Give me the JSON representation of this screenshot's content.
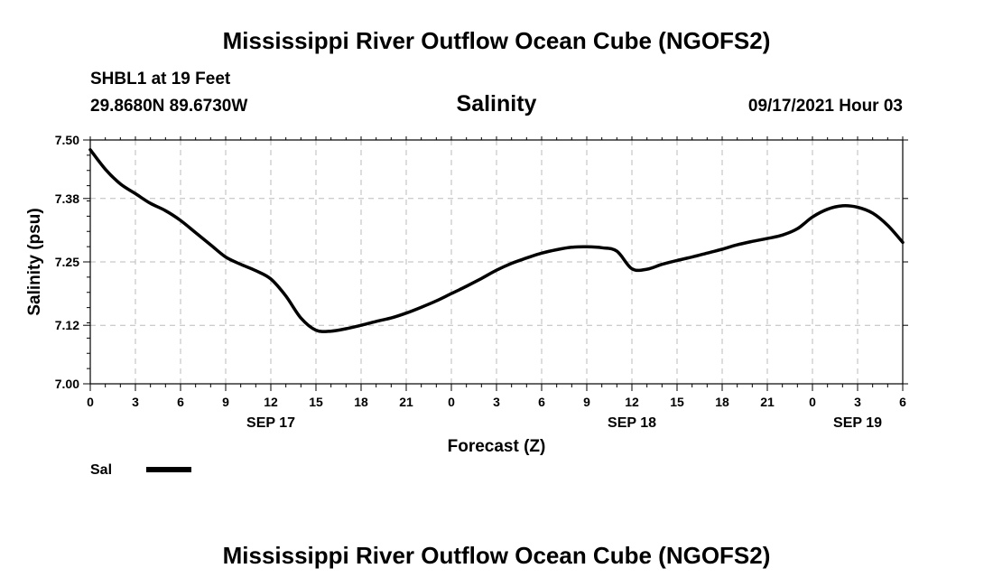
{
  "header": {
    "title": "Mississippi River Outflow Ocean Cube (NGOFS2)",
    "station": "SHBL1 at 19 Feet",
    "coords": "29.8680N  89.6730W",
    "chart_title": "Salinity",
    "run": "09/17/2021 Hour 03"
  },
  "footer": {
    "title": "Mississippi River Outflow Ocean Cube (NGOFS2)"
  },
  "chart_data": {
    "type": "line",
    "title": "Salinity",
    "xlabel": "Forecast (Z)",
    "ylabel": "Salinity (psu)",
    "xlim": [
      0,
      54
    ],
    "ylim": [
      7.0,
      7.5
    ],
    "yticks": [
      7.0,
      7.12,
      7.25,
      7.38,
      7.5
    ],
    "ytick_labels": [
      "7.00",
      "7.12",
      "7.25",
      "7.38",
      "7.50"
    ],
    "xticks": [
      0,
      3,
      6,
      9,
      12,
      15,
      18,
      21,
      24,
      27,
      30,
      33,
      36,
      39,
      42,
      45,
      48,
      51,
      54
    ],
    "xtick_labels": [
      "0",
      "3",
      "6",
      "9",
      "12",
      "15",
      "18",
      "21",
      "0",
      "3",
      "6",
      "9",
      "12",
      "15",
      "18",
      "21",
      "0",
      "3",
      "6"
    ],
    "date_labels": [
      {
        "x": 12,
        "label": "SEP 17"
      },
      {
        "x": 36,
        "label": "SEP 18"
      },
      {
        "x": 51,
        "label": "SEP 19"
      }
    ],
    "grid": true,
    "legend": [
      {
        "name": "Sal",
        "position": "bottom-left"
      }
    ],
    "series": [
      {
        "name": "Sal",
        "x": [
          0,
          1,
          2,
          3,
          4,
          5,
          6,
          7,
          8,
          9,
          10,
          11,
          12,
          13,
          14,
          15,
          16,
          17,
          18,
          19,
          20,
          21,
          22,
          23,
          24,
          25,
          26,
          27,
          28,
          29,
          30,
          31,
          32,
          33,
          34,
          35,
          36,
          37,
          38,
          39,
          40,
          41,
          42,
          43,
          44,
          45,
          46,
          47,
          48,
          49,
          50,
          51,
          52,
          53,
          54
        ],
        "values": [
          7.48,
          7.44,
          7.41,
          7.39,
          7.37,
          7.355,
          7.335,
          7.31,
          7.285,
          7.26,
          7.245,
          7.232,
          7.215,
          7.18,
          7.135,
          7.11,
          7.108,
          7.113,
          7.12,
          7.128,
          7.135,
          7.145,
          7.157,
          7.17,
          7.185,
          7.2,
          7.216,
          7.233,
          7.247,
          7.258,
          7.268,
          7.275,
          7.28,
          7.281,
          7.279,
          7.272,
          7.236,
          7.235,
          7.245,
          7.253,
          7.26,
          7.268,
          7.276,
          7.285,
          7.292,
          7.298,
          7.305,
          7.318,
          7.342,
          7.358,
          7.365,
          7.362,
          7.35,
          7.325,
          7.29
        ]
      }
    ]
  }
}
